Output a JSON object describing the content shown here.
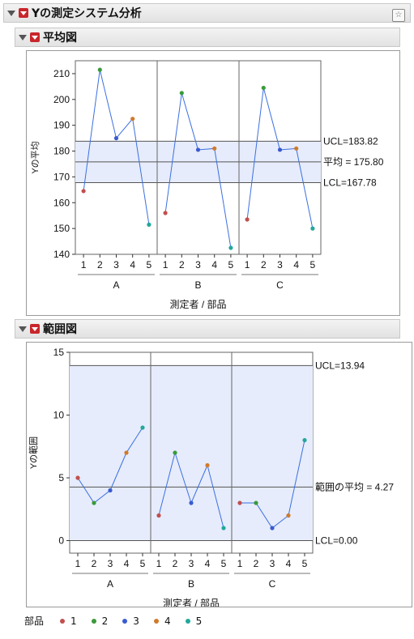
{
  "report": {
    "title": "Yの測定システム分析"
  },
  "mean_chart": {
    "title": "平均図",
    "chart_data": {
      "type": "line",
      "ylabel": "Yの平均",
      "xlabel": "測定者 / 部品",
      "ylim": [
        140,
        215
      ],
      "yticks": [
        140,
        150,
        160,
        170,
        180,
        190,
        200,
        210
      ],
      "groups": [
        "A",
        "B",
        "C"
      ],
      "parts": [
        "1",
        "2",
        "3",
        "4",
        "5"
      ],
      "values": [
        [
          164.5,
          211.5,
          185.0,
          192.5,
          151.5
        ],
        [
          156.0,
          202.5,
          180.5,
          181.0,
          142.5
        ],
        [
          153.5,
          204.5,
          180.5,
          181.0,
          150.0
        ]
      ],
      "ucl": 183.82,
      "center": 175.8,
      "lcl": 167.78,
      "ucl_label": "UCL=183.82",
      "center_label": "平均 = 175.80",
      "lcl_label": "LCL=167.78"
    }
  },
  "range_chart": {
    "title": "範囲図",
    "chart_data": {
      "type": "line",
      "ylabel": "Yの範囲",
      "xlabel": "測定者 / 部品",
      "ylim": [
        -1,
        15
      ],
      "yticks": [
        0,
        5,
        10,
        15
      ],
      "groups": [
        "A",
        "B",
        "C"
      ],
      "parts": [
        "1",
        "2",
        "3",
        "4",
        "5"
      ],
      "values": [
        [
          5,
          3,
          4,
          7,
          9
        ],
        [
          2,
          7,
          3,
          6,
          1
        ],
        [
          3,
          3,
          1,
          2,
          8
        ]
      ],
      "ucl": 13.94,
      "center": 4.27,
      "lcl": 0.0,
      "ucl_label": "UCL=13.94",
      "center_label": "範囲の平均 = 4.27",
      "lcl_label": "LCL=0.00"
    }
  },
  "legend": {
    "title": "部品",
    "items": [
      {
        "label": "1",
        "color": "#c0504d"
      },
      {
        "label": "2",
        "color": "#3a9a3a"
      },
      {
        "label": "3",
        "color": "#3a5bd0"
      },
      {
        "label": "4",
        "color": "#d07a2a"
      },
      {
        "label": "5",
        "color": "#22a89a"
      }
    ]
  },
  "colors": {
    "line": "#3b6fe0",
    "band": "#e6ecfb",
    "limit": "#555555"
  }
}
